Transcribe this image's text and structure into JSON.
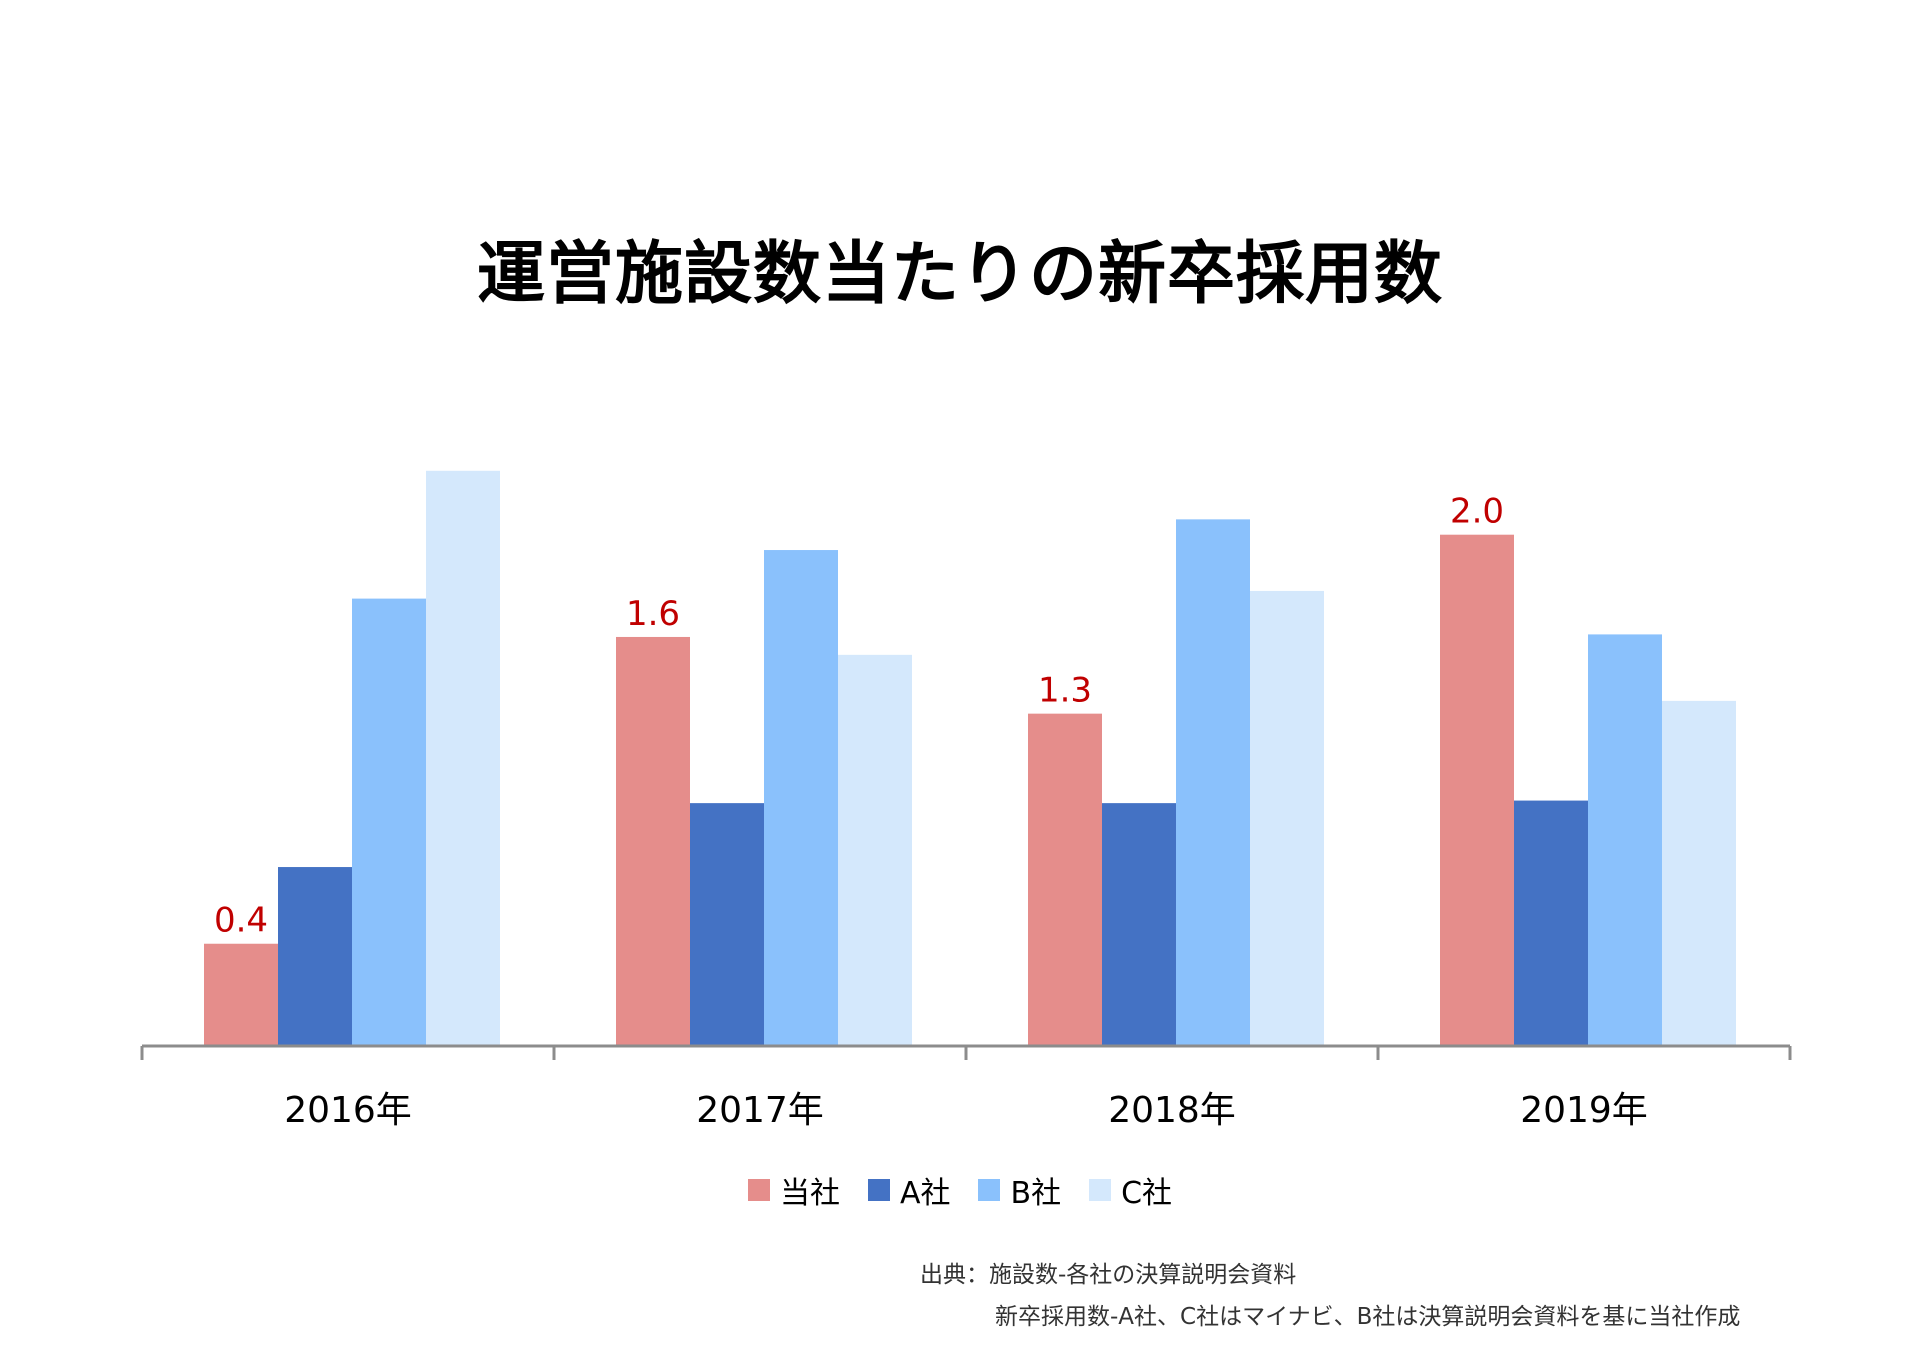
{
  "chart_data": {
    "type": "bar",
    "title": "運営施設数当たりの新卒採用数",
    "categories": [
      "2016年",
      "2017年",
      "2018年",
      "2019年"
    ],
    "series": [
      {
        "name": "当社",
        "color": "#e58d8b",
        "values": [
          0.4,
          1.6,
          1.3,
          2.0
        ],
        "labels": [
          "0.4",
          "1.6",
          "1.3",
          "2.0"
        ]
      },
      {
        "name": "A社",
        "color": "#4472c4",
        "values": [
          0.7,
          0.95,
          0.95,
          0.96
        ]
      },
      {
        "name": "B社",
        "color": "#8ac1fc",
        "values": [
          1.75,
          1.94,
          2.06,
          1.61
        ]
      },
      {
        "name": "C社",
        "color": "#d4e8fc",
        "values": [
          2.25,
          1.53,
          1.78,
          1.35
        ]
      }
    ],
    "ylim": [
      0,
      2.3
    ],
    "grid": false,
    "legend_position": "bottom",
    "data_label_color": "#c00000"
  },
  "source": {
    "line1": "出典：施設数-各社の決算説明会資料",
    "line2": "新卒採用数-A社、C社はマイナビ、B社は決算説明会資料を基に当社作成"
  }
}
